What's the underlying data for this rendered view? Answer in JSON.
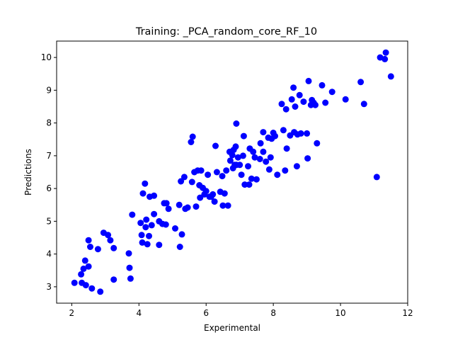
{
  "chart_data": {
    "type": "scatter",
    "title": "Training: _PCA_random_core_RF_10",
    "xlabel": "Experimental",
    "ylabel": "Predictions",
    "xlim": [
      1.55,
      12.0
    ],
    "ylim": [
      2.5,
      10.5
    ],
    "xticks": [
      2,
      4,
      6,
      8,
      10,
      12
    ],
    "yticks": [
      3,
      4,
      5,
      6,
      7,
      8,
      9,
      10
    ],
    "grid": false,
    "marker_color": "#0000ff",
    "points": [
      [
        2.08,
        3.12
      ],
      [
        2.28,
        3.38
      ],
      [
        2.3,
        3.12
      ],
      [
        2.35,
        3.55
      ],
      [
        2.4,
        3.8
      ],
      [
        2.42,
        3.05
      ],
      [
        2.5,
        3.62
      ],
      [
        2.5,
        4.42
      ],
      [
        2.55,
        4.22
      ],
      [
        2.6,
        2.95
      ],
      [
        2.78,
        4.15
      ],
      [
        2.85,
        2.85
      ],
      [
        2.95,
        4.65
      ],
      [
        3.08,
        4.58
      ],
      [
        3.15,
        4.42
      ],
      [
        3.25,
        4.18
      ],
      [
        3.25,
        3.22
      ],
      [
        3.7,
        4.02
      ],
      [
        3.72,
        3.58
      ],
      [
        3.75,
        3.25
      ],
      [
        3.8,
        5.2
      ],
      [
        4.05,
        4.95
      ],
      [
        4.08,
        4.58
      ],
      [
        4.1,
        4.35
      ],
      [
        4.12,
        5.85
      ],
      [
        4.18,
        6.15
      ],
      [
        4.2,
        4.82
      ],
      [
        4.22,
        5.05
      ],
      [
        4.25,
        4.3
      ],
      [
        4.3,
        4.55
      ],
      [
        4.32,
        5.75
      ],
      [
        4.38,
        4.88
      ],
      [
        4.45,
        5.78
      ],
      [
        4.45,
        5.22
      ],
      [
        4.6,
        4.28
      ],
      [
        4.6,
        5.0
      ],
      [
        4.7,
        4.92
      ],
      [
        4.75,
        5.55
      ],
      [
        4.8,
        4.9
      ],
      [
        4.82,
        5.55
      ],
      [
        4.88,
        5.38
      ],
      [
        5.08,
        4.78
      ],
      [
        5.2,
        5.5
      ],
      [
        5.22,
        4.22
      ],
      [
        5.25,
        6.22
      ],
      [
        5.28,
        4.6
      ],
      [
        5.35,
        6.35
      ],
      [
        5.38,
        5.38
      ],
      [
        5.45,
        5.42
      ],
      [
        5.55,
        7.42
      ],
      [
        5.58,
        6.2
      ],
      [
        5.6,
        7.58
      ],
      [
        5.65,
        6.5
      ],
      [
        5.7,
        5.45
      ],
      [
        5.75,
        6.55
      ],
      [
        5.8,
        6.1
      ],
      [
        5.82,
        5.72
      ],
      [
        5.85,
        6.55
      ],
      [
        5.9,
        6.02
      ],
      [
        5.95,
        5.82
      ],
      [
        6.0,
        5.92
      ],
      [
        6.05,
        6.42
      ],
      [
        6.1,
        5.75
      ],
      [
        6.15,
        5.75
      ],
      [
        6.2,
        5.82
      ],
      [
        6.25,
        5.6
      ],
      [
        6.28,
        7.3
      ],
      [
        6.32,
        6.5
      ],
      [
        6.42,
        5.9
      ],
      [
        6.48,
        6.38
      ],
      [
        6.5,
        5.48
      ],
      [
        6.55,
        5.85
      ],
      [
        6.6,
        6.55
      ],
      [
        6.65,
        5.48
      ],
      [
        6.7,
        7.12
      ],
      [
        6.72,
        6.85
      ],
      [
        6.78,
        7.02
      ],
      [
        6.8,
        6.62
      ],
      [
        6.82,
        7.18
      ],
      [
        6.85,
        6.72
      ],
      [
        6.88,
        7.28
      ],
      [
        6.9,
        7.98
      ],
      [
        6.9,
        6.72
      ],
      [
        6.95,
        6.95
      ],
      [
        7.0,
        6.72
      ],
      [
        7.05,
        6.42
      ],
      [
        7.1,
        7.0
      ],
      [
        7.12,
        7.6
      ],
      [
        7.15,
        6.12
      ],
      [
        7.25,
        6.68
      ],
      [
        7.28,
        6.12
      ],
      [
        7.3,
        7.22
      ],
      [
        7.35,
        6.3
      ],
      [
        7.4,
        7.12
      ],
      [
        7.45,
        6.95
      ],
      [
        7.5,
        6.28
      ],
      [
        7.6,
        6.9
      ],
      [
        7.62,
        7.38
      ],
      [
        7.7,
        7.72
      ],
      [
        7.7,
        7.12
      ],
      [
        7.78,
        6.82
      ],
      [
        7.85,
        7.55
      ],
      [
        7.88,
        6.58
      ],
      [
        7.92,
        6.95
      ],
      [
        7.95,
        7.52
      ],
      [
        8.0,
        7.7
      ],
      [
        8.05,
        7.6
      ],
      [
        8.12,
        6.42
      ],
      [
        8.25,
        8.58
      ],
      [
        8.3,
        7.78
      ],
      [
        8.35,
        6.55
      ],
      [
        8.38,
        8.42
      ],
      [
        8.4,
        7.22
      ],
      [
        8.5,
        7.62
      ],
      [
        8.55,
        8.72
      ],
      [
        8.6,
        9.08
      ],
      [
        8.62,
        7.72
      ],
      [
        8.65,
        8.5
      ],
      [
        8.7,
        6.68
      ],
      [
        8.72,
        7.65
      ],
      [
        8.78,
        8.85
      ],
      [
        8.82,
        7.68
      ],
      [
        8.9,
        8.65
      ],
      [
        9.0,
        7.68
      ],
      [
        9.02,
        6.92
      ],
      [
        9.05,
        9.28
      ],
      [
        9.12,
        8.55
      ],
      [
        9.15,
        8.7
      ],
      [
        9.2,
        8.62
      ],
      [
        9.25,
        8.55
      ],
      [
        9.3,
        7.38
      ],
      [
        9.45,
        9.15
      ],
      [
        9.55,
        8.62
      ],
      [
        9.75,
        8.95
      ],
      [
        10.15,
        8.72
      ],
      [
        10.6,
        9.25
      ],
      [
        10.7,
        8.58
      ],
      [
        11.08,
        6.35
      ],
      [
        11.18,
        10.0
      ],
      [
        11.32,
        9.95
      ],
      [
        11.35,
        10.15
      ],
      [
        11.5,
        9.42
      ]
    ]
  }
}
